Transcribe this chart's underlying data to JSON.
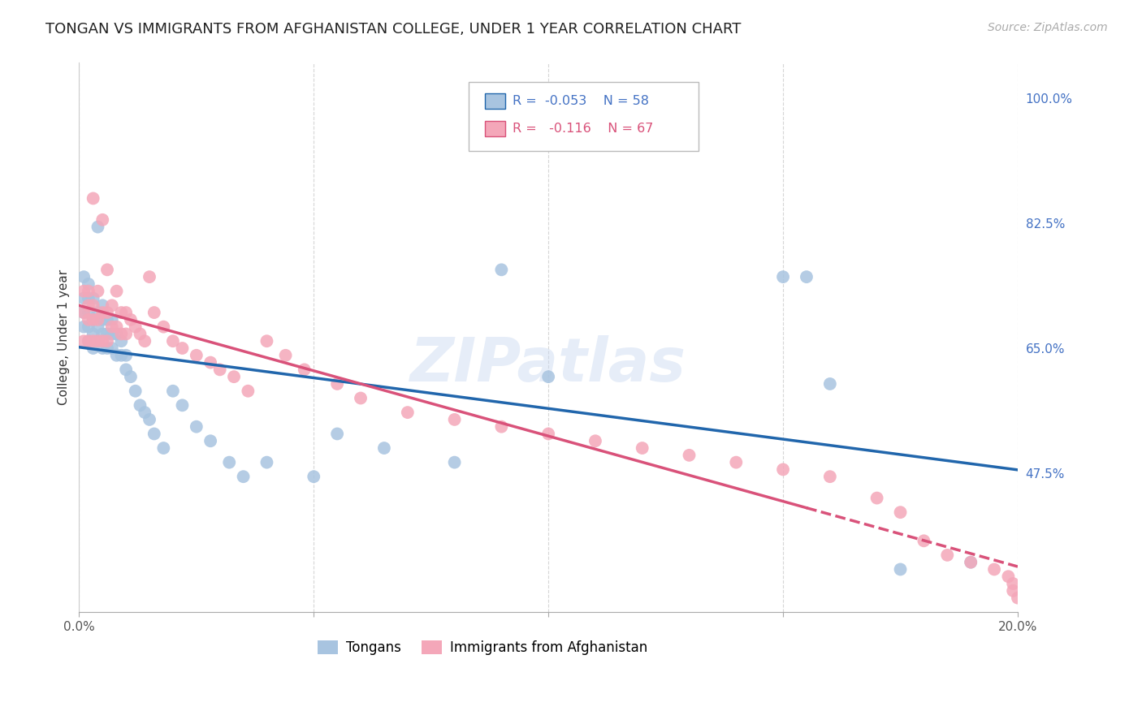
{
  "title": "TONGAN VS IMMIGRANTS FROM AFGHANISTAN COLLEGE, UNDER 1 YEAR CORRELATION CHART",
  "source": "Source: ZipAtlas.com",
  "ylabel": "College, Under 1 year",
  "x_min": 0.0,
  "x_max": 0.2,
  "y_min": 0.28,
  "y_max": 1.05,
  "y_tick_labels_right": [
    "100.0%",
    "82.5%",
    "65.0%",
    "47.5%"
  ],
  "y_tick_values_right": [
    1.0,
    0.825,
    0.65,
    0.475
  ],
  "grid_color": "#cccccc",
  "background_color": "#ffffff",
  "series1_color": "#a8c4e0",
  "series1_line_color": "#2166ac",
  "series2_color": "#f4a7b9",
  "series2_line_color": "#d9527a",
  "bottom_legend1": "Tongans",
  "bottom_legend2": "Immigrants from Afghanistan",
  "watermark": "ZIPatlas",
  "title_fontsize": 13,
  "axis_label_fontsize": 11,
  "tick_fontsize": 11,
  "source_fontsize": 10,
  "tongans_x": [
    0.001,
    0.001,
    0.001,
    0.001,
    0.002,
    0.002,
    0.002,
    0.002,
    0.002,
    0.003,
    0.003,
    0.003,
    0.003,
    0.004,
    0.004,
    0.004,
    0.004,
    0.005,
    0.005,
    0.005,
    0.005,
    0.006,
    0.006,
    0.006,
    0.007,
    0.007,
    0.007,
    0.008,
    0.008,
    0.009,
    0.009,
    0.01,
    0.01,
    0.011,
    0.012,
    0.013,
    0.014,
    0.015,
    0.016,
    0.018,
    0.02,
    0.022,
    0.025,
    0.028,
    0.032,
    0.035,
    0.04,
    0.05,
    0.055,
    0.065,
    0.08,
    0.09,
    0.1,
    0.15,
    0.155,
    0.16,
    0.175,
    0.19
  ],
  "tongans_y": [
    0.68,
    0.7,
    0.72,
    0.75,
    0.66,
    0.68,
    0.7,
    0.72,
    0.74,
    0.65,
    0.67,
    0.69,
    0.72,
    0.66,
    0.68,
    0.7,
    0.82,
    0.65,
    0.67,
    0.69,
    0.71,
    0.65,
    0.67,
    0.69,
    0.65,
    0.67,
    0.69,
    0.64,
    0.67,
    0.64,
    0.66,
    0.62,
    0.64,
    0.61,
    0.59,
    0.57,
    0.56,
    0.55,
    0.53,
    0.51,
    0.59,
    0.57,
    0.54,
    0.52,
    0.49,
    0.47,
    0.49,
    0.47,
    0.53,
    0.51,
    0.49,
    0.76,
    0.61,
    0.75,
    0.75,
    0.6,
    0.34,
    0.35
  ],
  "afghanistan_x": [
    0.001,
    0.001,
    0.001,
    0.002,
    0.002,
    0.002,
    0.002,
    0.003,
    0.003,
    0.003,
    0.003,
    0.004,
    0.004,
    0.004,
    0.005,
    0.005,
    0.005,
    0.006,
    0.006,
    0.006,
    0.007,
    0.007,
    0.008,
    0.008,
    0.009,
    0.009,
    0.01,
    0.01,
    0.011,
    0.012,
    0.013,
    0.014,
    0.015,
    0.016,
    0.018,
    0.02,
    0.022,
    0.025,
    0.028,
    0.03,
    0.033,
    0.036,
    0.04,
    0.044,
    0.048,
    0.055,
    0.06,
    0.07,
    0.08,
    0.09,
    0.1,
    0.11,
    0.12,
    0.13,
    0.14,
    0.15,
    0.16,
    0.17,
    0.175,
    0.18,
    0.185,
    0.19,
    0.195,
    0.198,
    0.199,
    0.199,
    0.2
  ],
  "afghanistan_y": [
    0.66,
    0.7,
    0.73,
    0.66,
    0.69,
    0.71,
    0.73,
    0.66,
    0.69,
    0.71,
    0.86,
    0.66,
    0.69,
    0.73,
    0.66,
    0.7,
    0.83,
    0.66,
    0.7,
    0.76,
    0.68,
    0.71,
    0.68,
    0.73,
    0.67,
    0.7,
    0.67,
    0.7,
    0.69,
    0.68,
    0.67,
    0.66,
    0.75,
    0.7,
    0.68,
    0.66,
    0.65,
    0.64,
    0.63,
    0.62,
    0.61,
    0.59,
    0.66,
    0.64,
    0.62,
    0.6,
    0.58,
    0.56,
    0.55,
    0.54,
    0.53,
    0.52,
    0.51,
    0.5,
    0.49,
    0.48,
    0.47,
    0.44,
    0.42,
    0.38,
    0.36,
    0.35,
    0.34,
    0.33,
    0.32,
    0.31,
    0.3
  ]
}
